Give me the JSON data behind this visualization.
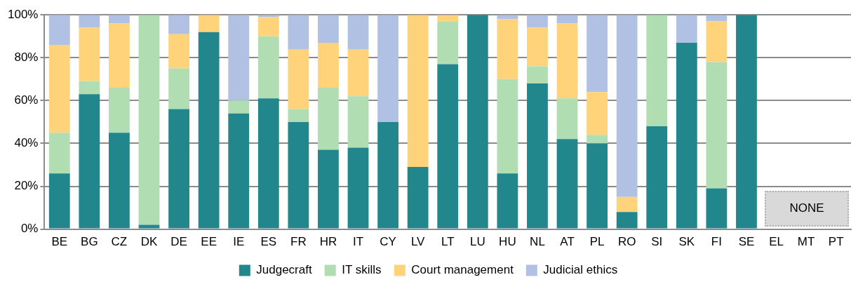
{
  "chart_data": {
    "type": "bar",
    "stacked": true,
    "categories": [
      "BE",
      "BG",
      "CZ",
      "DK",
      "DE",
      "EE",
      "IE",
      "ES",
      "FR",
      "HR",
      "IT",
      "CY",
      "LV",
      "LT",
      "LU",
      "HU",
      "NL",
      "AT",
      "PL",
      "RO",
      "SI",
      "SK",
      "FI",
      "SE",
      "EL",
      "MT",
      "PT"
    ],
    "series": [
      {
        "name": "Judgecraft",
        "color": "#21878d",
        "values": [
          26,
          63,
          45,
          2,
          56,
          92,
          54,
          61,
          50,
          37,
          38,
          50,
          29,
          77,
          100,
          26,
          68,
          42,
          40,
          8,
          48,
          87,
          19,
          100,
          null,
          null,
          null
        ]
      },
      {
        "name": "IT skills",
        "color": "#b0ddb2",
        "values": [
          19,
          6,
          21,
          98,
          19,
          0,
          6,
          29,
          6,
          29,
          24,
          0,
          0,
          20,
          0,
          44,
          8,
          19,
          4,
          0,
          52,
          0,
          59,
          0,
          null,
          null,
          null
        ]
      },
      {
        "name": "Court management",
        "color": "#fed37a",
        "values": [
          41,
          25,
          30,
          0,
          16,
          8,
          0,
          9,
          28,
          21,
          22,
          0,
          71,
          3,
          0,
          28,
          18,
          35,
          20,
          7,
          0,
          0,
          19,
          0,
          null,
          null,
          null
        ]
      },
      {
        "name": "Judicial ethics",
        "color": "#b0c1e4",
        "values": [
          14,
          6,
          4,
          0,
          9,
          0,
          40,
          1,
          16,
          13,
          16,
          50,
          0,
          0,
          0,
          2,
          6,
          4,
          36,
          85,
          0,
          13,
          3,
          0,
          null,
          null,
          null
        ]
      }
    ],
    "ylim": [
      0,
      100
    ],
    "yticks": [
      {
        "value": 0,
        "label": "0%"
      },
      {
        "value": 20,
        "label": "20%"
      },
      {
        "value": 40,
        "label": "40%"
      },
      {
        "value": 60,
        "label": "60%"
      },
      {
        "value": 80,
        "label": "80%"
      },
      {
        "value": 100,
        "label": "100%"
      }
    ],
    "grid": "y",
    "legend": "bottom",
    "annotations": [
      "NONE"
    ]
  }
}
